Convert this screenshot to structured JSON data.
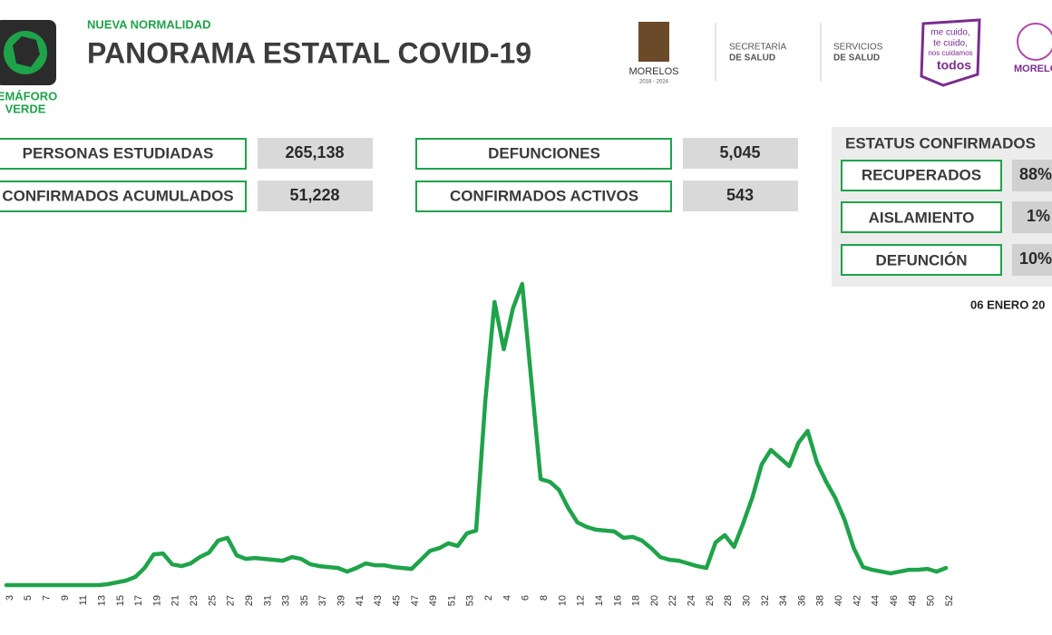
{
  "header": {
    "kicker": "NUEVA NORMALIDAD",
    "title": "PANORAMA ESTATAL COVID-19",
    "semaforo": [
      "EMÁFORO",
      "VERDE"
    ],
    "logos": {
      "morelos": "MORELOS",
      "morelos_years": "2018 - 2024",
      "secretaria": [
        "SECRETARÍA",
        "DE SALUD"
      ],
      "servicios": [
        "SERVICIOS",
        "DE SALUD"
      ],
      "campaign": [
        "me cuido,",
        "te cuido,",
        "nos cuidamos",
        "todos"
      ],
      "morelos2": "MORELO"
    }
  },
  "stats": [
    {
      "label": "PERSONAS ESTUDIADAS",
      "value": "265,138"
    },
    {
      "label": "CONFIRMADOS ACUMULADOS",
      "value": "51,228"
    },
    {
      "label": "DEFUNCIONES",
      "value": "5,045"
    },
    {
      "label": "CONFIRMADOS ACTIVOS",
      "value": "543"
    }
  ],
  "status": {
    "title": "ESTATUS CONFIRMADOS",
    "items": [
      {
        "label": "RECUPERADOS",
        "value": "88%"
      },
      {
        "label": "AISLAMIENTO",
        "value": "1%"
      },
      {
        "label": "DEFUNCIÓN",
        "value": "10%"
      }
    ]
  },
  "date": "06 ENERO 20",
  "chart_data": {
    "type": "line",
    "color": "#1fa34a",
    "ylim": [
      0,
      100
    ],
    "categories": [
      "3",
      null,
      "5",
      null,
      "7",
      null,
      "9",
      null,
      "11",
      null,
      "13",
      null,
      "15",
      null,
      "17",
      null,
      "19",
      null,
      "21",
      null,
      "23",
      null,
      "25",
      null,
      "27",
      null,
      "29",
      null,
      "31",
      null,
      "33",
      null,
      "35",
      null,
      "37",
      null,
      "39",
      null,
      "41",
      null,
      "43",
      null,
      "45",
      null,
      "47",
      null,
      "49",
      null,
      "51",
      null,
      "53",
      null,
      "2",
      null,
      "4",
      null,
      "6",
      null,
      "8",
      null,
      "10",
      null,
      "12",
      null,
      "14",
      null,
      "16",
      null,
      "18",
      null,
      "20",
      null,
      "22",
      null,
      "24",
      null,
      "26",
      null,
      "28",
      null,
      "30",
      null,
      "32",
      null,
      "34",
      null,
      "36",
      null,
      "38",
      null,
      "40",
      null,
      "42",
      null,
      "44",
      null,
      "46",
      null,
      "48",
      null,
      "50",
      null,
      "52"
    ],
    "values": [
      0,
      0,
      0,
      0,
      0,
      0,
      0,
      0,
      0,
      0,
      0,
      0.3,
      0.9,
      1.5,
      2.7,
      5.7,
      10.2,
      10.5,
      6.9,
      6.3,
      7.2,
      9.3,
      10.8,
      14.8,
      15.7,
      9.9,
      8.7,
      9.0,
      8.7,
      8.4,
      8.1,
      9.3,
      8.7,
      6.9,
      6.3,
      6.0,
      5.7,
      4.5,
      5.7,
      7.2,
      6.6,
      6.6,
      6.0,
      5.7,
      5.4,
      8.4,
      11.4,
      12.3,
      13.9,
      13.0,
      17.2,
      18.1,
      61.4,
      94.0,
      78.3,
      91.9,
      100,
      67.8,
      35.2,
      34.3,
      31.6,
      25.6,
      20.8,
      19.3,
      18.4,
      18.1,
      17.8,
      15.7,
      16.0,
      14.8,
      12.3,
      9.3,
      8.4,
      8.1,
      7.2,
      6.3,
      5.7,
      14.2,
      16.6,
      12.7,
      20.5,
      29.2,
      40.1,
      44.9,
      42.2,
      39.5,
      47.3,
      51.2,
      40.7,
      34.3,
      28.9,
      21.7,
      12.3,
      6.0,
      5.1,
      4.5,
      3.9,
      4.5,
      5.1,
      5.1,
      5.4,
      4.5,
      5.7
    ]
  }
}
